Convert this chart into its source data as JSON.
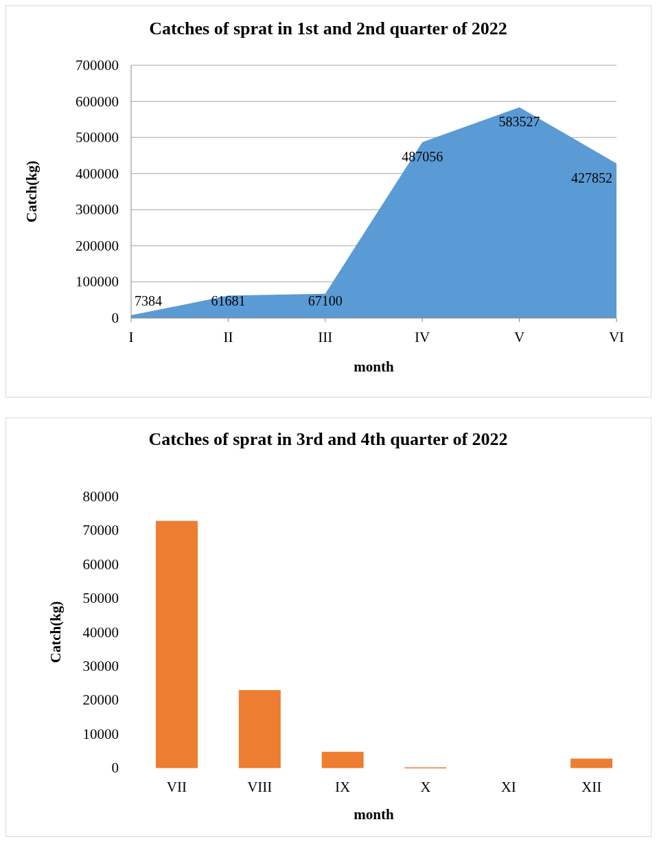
{
  "chart_data": [
    {
      "type": "area",
      "title": "Catches of sprat in 1st and 2nd quarter of 2022",
      "xlabel": "month",
      "ylabel": "Catch(kg)",
      "categories": [
        "I",
        "II",
        "III",
        "IV",
        "V",
        "VI"
      ],
      "series": [
        {
          "color": "#5b9bd5",
          "values": [
            7384,
            61681,
            67100,
            487056,
            583527,
            427852
          ]
        }
      ],
      "ylim": [
        0,
        700000
      ],
      "yticks": [
        0,
        100000,
        200000,
        300000,
        400000,
        500000,
        600000,
        700000
      ],
      "grid": "y",
      "data_labels": true
    },
    {
      "type": "bar",
      "title": "Catches of sprat in 3rd and 4th quarter of 2022",
      "xlabel": "month",
      "ylabel": "Catch(kg)",
      "categories": [
        "VII",
        "VIII",
        "IX",
        "X",
        "XI",
        "XII"
      ],
      "series": [
        {
          "color": "#ed7d31",
          "values": [
            72700,
            22800,
            4600,
            0,
            null,
            2600
          ]
        }
      ],
      "ylim": [
        0,
        80000
      ],
      "yticks": [
        0,
        10000,
        20000,
        30000,
        40000,
        50000,
        60000,
        70000,
        80000
      ]
    }
  ]
}
